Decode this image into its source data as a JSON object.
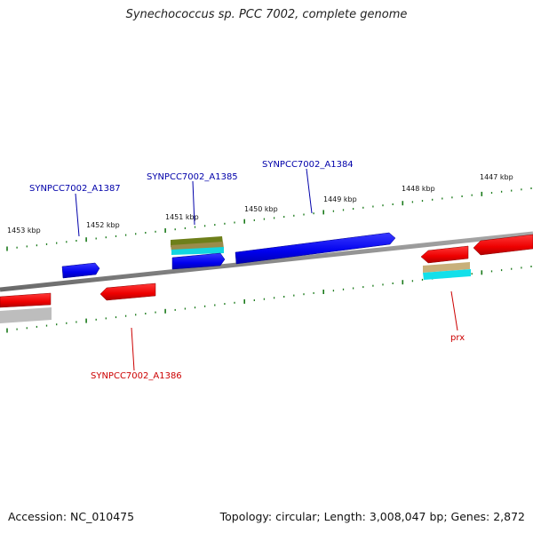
{
  "title": "Synechococcus sp. PCC 7002, complete genome",
  "footer": {
    "accession": "Accession: NC_010475",
    "summary": "Topology: circular; Length: 3,008,047 bp; Genes: 2,872"
  },
  "colors": {
    "forward_gene": "#0000ee",
    "reverse_gene": "#ee0000",
    "tick": "#1a7a1a",
    "backbone": "#8a8a8a",
    "blue_label": "#0000aa",
    "red_label": "#cc0000"
  },
  "kbp_labels": [
    "1453 kbp",
    "1452 kbp",
    "1451 kbp",
    "1450 kbp",
    "1449 kbp",
    "1448 kbp",
    "1447 kbp"
  ],
  "gene_labels": {
    "a1387": "SYNPCC7002_A1387",
    "a1385": "SYNPCC7002_A1385",
    "a1384": "SYNPCC7002_A1384",
    "a1386": "SYNPCC7002_A1386",
    "prx": "prx"
  }
}
